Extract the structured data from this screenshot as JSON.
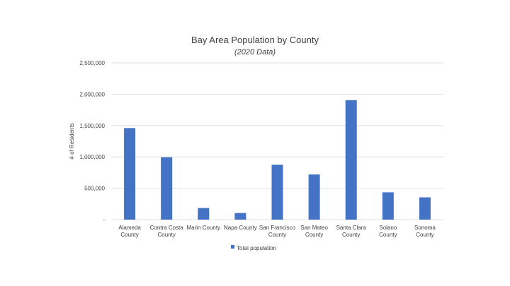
{
  "chart_data": {
    "type": "bar",
    "title": "Bay Area Population by County",
    "subtitle": "(2020 Data)",
    "xlabel": "",
    "ylabel": "# of Residents",
    "categories": [
      [
        "Alameda",
        "County"
      ],
      [
        "Contra Costa",
        "County"
      ],
      [
        "Marin County"
      ],
      [
        "Napa County"
      ],
      [
        "San Francisco",
        "County"
      ],
      [
        "San Mateo",
        "County"
      ],
      [
        "Santa Clara",
        "County"
      ],
      [
        "Solano",
        "County"
      ],
      [
        "Sonoma",
        "County"
      ]
    ],
    "series": [
      {
        "name": "Total population",
        "color": "#4472C4",
        "values": [
          1460000,
          995000,
          185000,
          105000,
          875000,
          720000,
          1905000,
          435000,
          355000
        ]
      }
    ],
    "ylim": [
      0,
      2500000
    ],
    "yticks": [
      0,
      500000,
      1000000,
      1500000,
      2000000,
      2500000
    ],
    "ytick_labels": [
      "-",
      "500,000",
      "1,000,000",
      "1,500,000",
      "2,000,000",
      "2,500,000"
    ],
    "grid": true,
    "legend_position": "bottom",
    "colors": {
      "bar": "#4472C4",
      "grid": "#d9d9d9",
      "text": "#404040"
    }
  }
}
